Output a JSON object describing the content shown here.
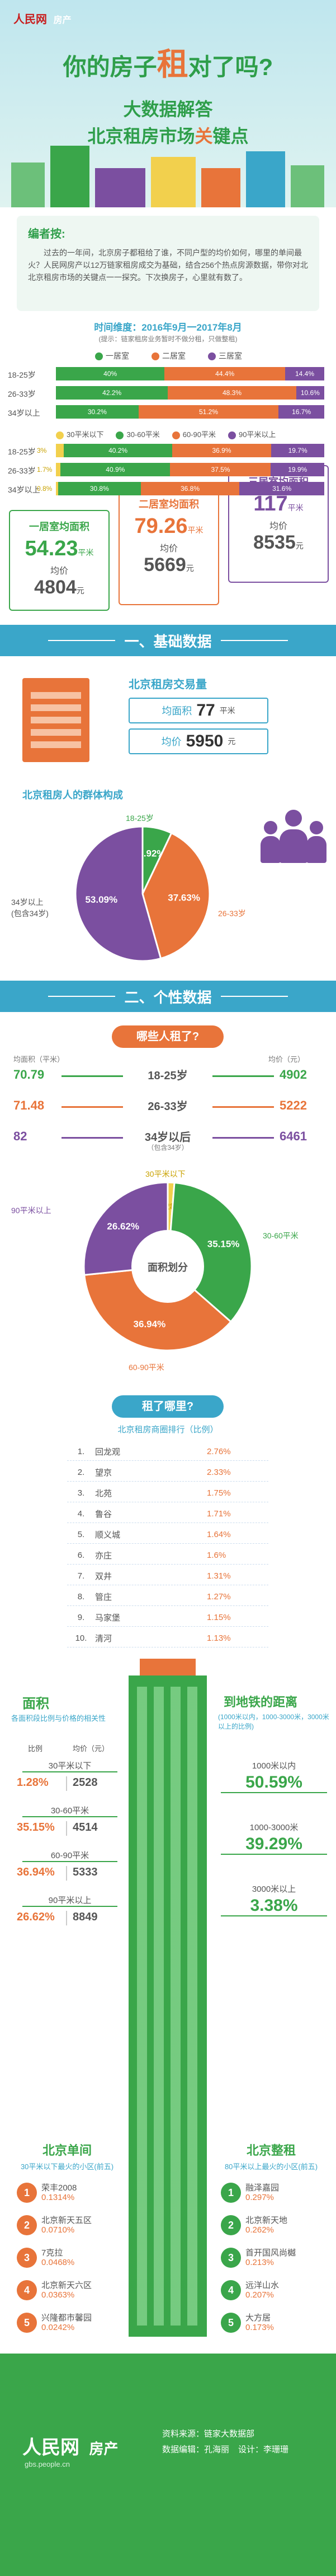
{
  "header": {
    "brand": "人民网",
    "brand_sub": "房产",
    "title_a": "你的房子",
    "title_b": "租",
    "title_c": "对了吗?",
    "subtitle_1": "大数据解答",
    "subtitle_2a": "北京租房市场",
    "subtitle_2b": "关",
    "subtitle_2c": "键点"
  },
  "editor": {
    "heading": "编者按:",
    "body": "过去的一年间，北京房子都租给了谁，不同户型的均价如何，哪里的单间最火？人民网房产以12万链家租房成交为基础，结合256个热点房源数据，带你对北北京租房市场的关键点一一探究。下次换房子，心里就有数了。"
  },
  "time_range": {
    "label": "时间维度：2016年9月一2017年8月",
    "note": "(提示：链家租房业务暂时不做分租，只做整租)"
  },
  "room_type": {
    "legend": [
      "一居室",
      "二居室",
      "三居室"
    ],
    "colors": [
      "#3aa64a",
      "#e8743a",
      "#7b4fa0"
    ],
    "rows": [
      {
        "age": "18-25岁",
        "values": [
          "40%",
          "44.4%",
          "14.4%"
        ],
        "fractions": [
          0.4,
          0.444,
          0.144
        ]
      },
      {
        "age": "26-33岁",
        "values": [
          "42.2%",
          "48.3%",
          "10.6%"
        ],
        "fractions": [
          0.422,
          0.483,
          0.106
        ]
      },
      {
        "age": "34岁以上",
        "values": [
          "30.2%",
          "51.2%",
          "16.7%"
        ],
        "fractions": [
          0.302,
          0.512,
          0.167
        ]
      }
    ]
  },
  "area_type": {
    "legend": [
      "30平米以下",
      "30-60平米",
      "60-90平米",
      "90平米以上"
    ],
    "colors": [
      "#f2d04d",
      "#3aa64a",
      "#e8743a",
      "#7b4fa0"
    ],
    "rows": [
      {
        "age": "18-25岁",
        "values": [
          "3%",
          "40.2%",
          "36.9%",
          "19.7%"
        ],
        "fractions": [
          0.03,
          0.402,
          0.369,
          0.197
        ]
      },
      {
        "age": "26-33岁",
        "values": [
          "1.7%",
          "40.9%",
          "37.5%",
          "19.9%"
        ],
        "fractions": [
          0.017,
          0.409,
          0.375,
          0.199
        ]
      },
      {
        "age": "34岁以上",
        "values": [
          "0.8%",
          "30.8%",
          "36.8%",
          "31.6%"
        ],
        "fractions": [
          0.008,
          0.308,
          0.368,
          0.316
        ]
      }
    ]
  },
  "room_cards": [
    {
      "title": "一居室均面积",
      "area": "54.23",
      "area_unit": "平米",
      "price_label": "均价",
      "price": "4804",
      "price_unit": "元"
    },
    {
      "title": "二居室均面积",
      "area": "79.26",
      "area_unit": "平米",
      "price_label": "均价",
      "price": "5669",
      "price_unit": "元"
    },
    {
      "title": "三居室均面积",
      "area": "117",
      "area_unit": "平米",
      "price_label": "均价",
      "price": "8535",
      "price_unit": "元"
    }
  ],
  "section1": {
    "title": "一、基础数据"
  },
  "transaction": {
    "title": "北京租房交易量",
    "area_label": "均面积",
    "area": "77",
    "area_unit": "平米",
    "price_label": "均价",
    "price": "5950",
    "price_unit": "元"
  },
  "population": {
    "title": "北京租房人的群体构成",
    "labels": [
      "18-25岁",
      "26-33岁",
      "34岁以上\n(包含34岁)"
    ],
    "values": [
      "6.92%",
      "37.63%",
      "53.09%"
    ],
    "fractions": [
      0.0692,
      0.3763,
      0.5309
    ],
    "colors": [
      "#3aa64a",
      "#e8743a",
      "#7b4fa0"
    ]
  },
  "section2": {
    "title": "二、个性数据"
  },
  "who": {
    "title": "哪些人租了?",
    "left_header": "均面积（平米）",
    "right_header": "均价（元）",
    "rows": [
      {
        "area": "70.79",
        "age": "18-25岁",
        "price": "4902"
      },
      {
        "area": "71.48",
        "age": "26-33岁",
        "price": "5222"
      },
      {
        "area": "82",
        "age": "34岁以后",
        "age_note": "（包含34岁）",
        "price": "6461"
      }
    ]
  },
  "area_donut": {
    "center": "面积划分",
    "labels": [
      "30平米以下",
      "30-60平米",
      "60-90平米",
      "90平米以上"
    ],
    "values": [
      "1.28%",
      "35.15%",
      "36.94%",
      "26.62%"
    ],
    "fractions": [
      0.0128,
      0.3515,
      0.3694,
      0.2662
    ],
    "colors": [
      "#f2d04d",
      "#3aa64a",
      "#e8743a",
      "#7b4fa0"
    ]
  },
  "where": {
    "title": "租了哪里?",
    "subtitle": "北京租房商圈排行（比例）",
    "rows": [
      {
        "rank": "1.",
        "name": "回龙观",
        "pct": "2.76%"
      },
      {
        "rank": "2.",
        "name": "望京",
        "pct": "2.33%"
      },
      {
        "rank": "3.",
        "name": "北苑",
        "pct": "1.75%"
      },
      {
        "rank": "4.",
        "name": "鲁谷",
        "pct": "1.71%"
      },
      {
        "rank": "5.",
        "name": "顺义城",
        "pct": "1.64%"
      },
      {
        "rank": "6.",
        "name": "亦庄",
        "pct": "1.6%"
      },
      {
        "rank": "7.",
        "name": "双井",
        "pct": "1.31%"
      },
      {
        "rank": "8.",
        "name": "管庄",
        "pct": "1.27%"
      },
      {
        "rank": "9.",
        "name": "马家堡",
        "pct": "1.15%"
      },
      {
        "rank": "10.",
        "name": "清河",
        "pct": "1.13%"
      }
    ]
  },
  "area_price": {
    "title": "面积",
    "subtitle": "各面积段比例与价格的相关性",
    "col_ratio": "比例",
    "col_price": "均价（元）",
    "rows": [
      {
        "label": "30平米以下",
        "ratio": "1.28%",
        "price": "2528"
      },
      {
        "label": "30-60平米",
        "ratio": "35.15%",
        "price": "4514"
      },
      {
        "label": "60-90平米",
        "ratio": "36.94%",
        "price": "5333"
      },
      {
        "label": "90平米以上",
        "ratio": "26.62%",
        "price": "8849"
      }
    ]
  },
  "subway": {
    "title": "到地铁的距离",
    "subtitle": "(1000米以内，1000-3000米，3000米以上的比例)",
    "rows": [
      {
        "label": "1000米以内",
        "value": "50.59%"
      },
      {
        "label": "1000-3000米",
        "value": "39.29%"
      },
      {
        "label": "3000米以上",
        "value": "3.38%"
      }
    ]
  },
  "single_room": {
    "title": "北京单间",
    "subtitle": "30平米以下最火的小区(前五)",
    "rows": [
      {
        "rank": "1",
        "name": "荣丰2008",
        "pct": "0.1314%"
      },
      {
        "rank": "2",
        "name": "北京新天五区",
        "pct": "0.0710%"
      },
      {
        "rank": "3",
        "name": "7克拉",
        "pct": "0.0468%"
      },
      {
        "rank": "4",
        "name": "北京新天六区",
        "pct": "0.0363%"
      },
      {
        "rank": "5",
        "name": "兴隆都市馨园",
        "pct": "0.0242%"
      }
    ]
  },
  "whole_rent": {
    "title": "北京整租",
    "subtitle": "80平米以上最火的小区(前五)",
    "rows": [
      {
        "rank": "1",
        "name": "融泽嘉园",
        "pct": "0.297%"
      },
      {
        "rank": "2",
        "name": "北京新天地",
        "pct": "0.262%"
      },
      {
        "rank": "3",
        "name": "首开国风尚樾",
        "pct": "0.213%"
      },
      {
        "rank": "4",
        "name": "远洋山水",
        "pct": "0.207%"
      },
      {
        "rank": "5",
        "name": "大方居",
        "pct": "0.173%"
      }
    ]
  },
  "footer": {
    "brand": "人民网",
    "brand_sub": "房产",
    "line1_label": "资料来源：",
    "line1_value": "链家大数据部",
    "line2_label": "数据编辑：",
    "line2_value": "孔海丽",
    "line3_label": "设计：",
    "line3_value": "李珊珊",
    "site": "gbs.people.cn"
  }
}
